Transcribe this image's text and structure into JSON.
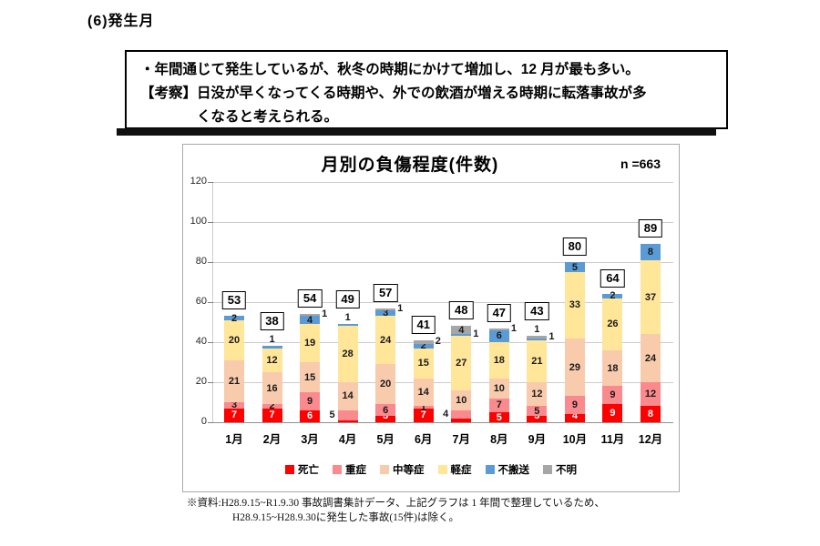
{
  "page": {
    "heading": "(6)発生月",
    "callout": {
      "line1": "・年間通じて発生しているが、秋冬の時期にかけて増加し、12 月が最も多い。",
      "line2": "【考察】日没が早くなってくる時期や、外での飲酒が増える時期に転落事故が多",
      "line3": "くなると考えられる。"
    },
    "footnote": {
      "line1": "※資料:H28.9.15~R1.9.30 事故調書集計データ、上記グラフは 1 年間で整理しているため、",
      "line2": "H28.9.15~H28.9.30に発生した事故(15件)は除く。"
    }
  },
  "chart_data": {
    "type": "bar",
    "stacked": true,
    "title": "月別の負傷程度(件数)",
    "n_label": "n =663",
    "categories": [
      "1月",
      "2月",
      "3月",
      "4月",
      "5月",
      "6月",
      "7月",
      "8月",
      "9月",
      "10月",
      "11月",
      "12月"
    ],
    "series": [
      {
        "name": "死亡",
        "color": "#ff0000",
        "label_color": "#ffffff",
        "values": [
          7,
          7,
          6,
          1,
          3,
          7,
          2,
          5,
          3,
          4,
          9,
          8
        ]
      },
      {
        "name": "重症",
        "color": "#fb8a8e",
        "label_color": "#1a1a1a",
        "values": [
          3,
          2,
          9,
          5,
          6,
          1,
          4,
          7,
          5,
          9,
          9,
          12
        ]
      },
      {
        "name": "中等症",
        "color": "#f8cbad",
        "label_color": "#1a1a1a",
        "values": [
          21,
          16,
          15,
          14,
          20,
          14,
          10,
          10,
          12,
          29,
          18,
          24
        ]
      },
      {
        "name": "軽症",
        "color": "#ffe699",
        "label_color": "#1a1a1a",
        "values": [
          20,
          12,
          19,
          28,
          24,
          15,
          27,
          18,
          21,
          33,
          26,
          37
        ]
      },
      {
        "name": "不搬送",
        "color": "#5b9bd5",
        "label_color": "#1a1a1a",
        "values": [
          2,
          1,
          4,
          1,
          3,
          2,
          1,
          6,
          1,
          5,
          2,
          8
        ]
      },
      {
        "name": "不明",
        "color": "#a6a6a6",
        "label_color": "#1a1a1a",
        "values": [
          0,
          0,
          1,
          0,
          1,
          2,
          4,
          1,
          1,
          0,
          0,
          0
        ]
      }
    ],
    "totals": [
      53,
      38,
      54,
      49,
      57,
      41,
      48,
      47,
      43,
      80,
      64,
      89
    ],
    "ylim": [
      0,
      120
    ],
    "yticks": [
      0,
      20,
      40,
      60,
      80,
      100,
      120
    ],
    "grid": true,
    "legend_position": "bottom",
    "label_layout": {
      "left": [
        [
          3,
          1
        ],
        [
          6,
          1
        ]
      ],
      "right": [
        [
          2,
          5
        ],
        [
          4,
          5
        ],
        [
          5,
          5
        ],
        [
          6,
          4
        ],
        [
          7,
          5
        ],
        [
          8,
          5
        ]
      ],
      "above": [
        [
          1,
          4
        ],
        [
          3,
          4
        ],
        [
          8,
          4
        ]
      ]
    }
  }
}
